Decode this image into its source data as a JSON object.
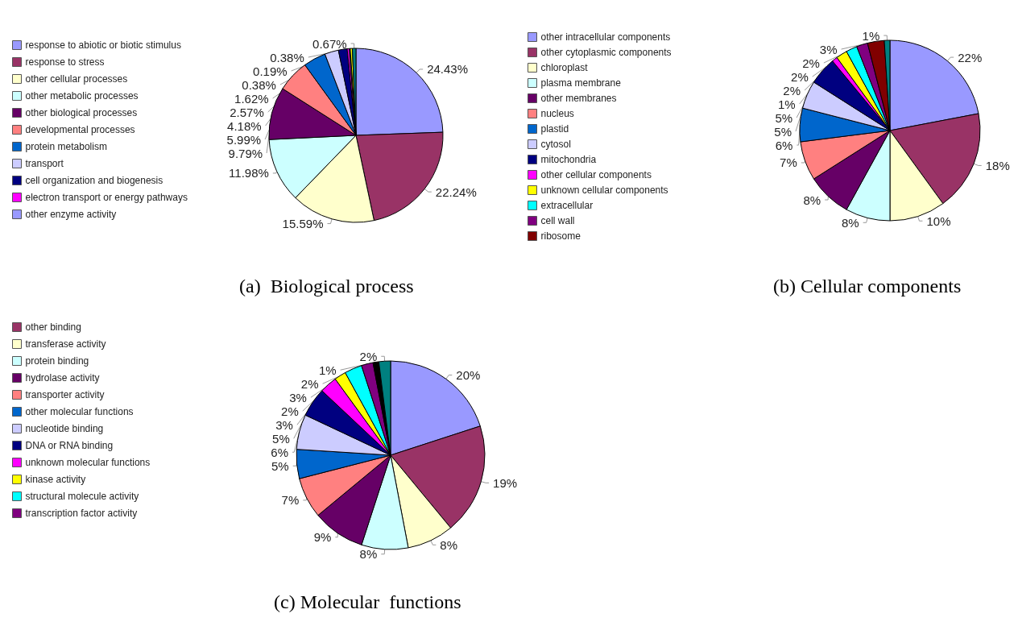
{
  "chart_data": [
    {
      "type": "pie",
      "title": "(a)  Biological process",
      "legend": "left",
      "categories": [
        "response to abiotic or biotic stimulus",
        "response to stress",
        "other cellular processes",
        "other metabolic processes",
        "other biological processes",
        "developmental processes",
        "protein metabolism",
        "transport",
        "cell organization and biogenesis",
        "electron transport or energy pathways",
        "other enzyme activity",
        null,
        null
      ],
      "values": [
        24.43,
        22.24,
        15.59,
        11.98,
        9.79,
        5.99,
        4.18,
        2.57,
        1.62,
        0.38,
        0.19,
        0.38,
        0.67
      ],
      "value_labels": [
        "24.43%",
        "22.24%",
        "15.59%",
        "11.98%",
        "9.79%",
        "5.99%",
        "4.18%",
        "2.57%",
        "1.62%",
        "0.38%",
        "0.19%",
        "0.38%",
        "0.67%"
      ],
      "colors": [
        "#9999ff",
        "#993366",
        "#ffffcc",
        "#ccffff",
        "#660066",
        "#ff8080",
        "#0066cc",
        "#ccccff",
        "#000080",
        "#ff00ff",
        "#9999ff",
        "#ffff00",
        "#008080"
      ]
    },
    {
      "type": "pie",
      "title": "(b) Cellular components",
      "legend": "left",
      "categories": [
        "other intracellular components",
        "other cytoplasmic components",
        "chloroplast",
        "plasma membrane",
        "other membranes",
        "nucleus",
        "plastid",
        "cytosol",
        "mitochondria",
        "other cellular components",
        "unknown cellular components",
        "extracellular",
        "cell wall",
        "ribosome",
        null
      ],
      "values": [
        22,
        18,
        10,
        8,
        8,
        7,
        6,
        5,
        5,
        1,
        2,
        2,
        2,
        3,
        1
      ],
      "value_labels": [
        "22%",
        "18%",
        "10%",
        "8%",
        "8%",
        "7%",
        "6%",
        "5%",
        "5%",
        "1%",
        "2%",
        "2%",
        "2%",
        "3%",
        "1%"
      ],
      "colors": [
        "#9999ff",
        "#993366",
        "#ffffcc",
        "#ccffff",
        "#660066",
        "#ff8080",
        "#0066cc",
        "#ccccff",
        "#000080",
        "#ff00ff",
        "#ffff00",
        "#00ffff",
        "#800080",
        "#800000",
        "#008080"
      ]
    },
    {
      "type": "pie",
      "title": "(c) Molecular  functions",
      "legend": "left",
      "categories": [
        null,
        "other binding",
        "transferase activity",
        "protein binding",
        "hydrolase activity",
        "transporter activity",
        "other molecular functions",
        "nucleotide binding",
        "DNA or RNA binding",
        "unknown molecular functions",
        "kinase activity",
        "structural molecule activity",
        "transcription factor activity",
        null,
        null
      ],
      "values": [
        20,
        19,
        8,
        8,
        9,
        7,
        5,
        6,
        5,
        3,
        2,
        3,
        2,
        1,
        2
      ],
      "value_labels": [
        "20%",
        "19%",
        "8%",
        "8%",
        "9%",
        "7%",
        "5%",
        "6%",
        "5%",
        "3%",
        "2%",
        "3%",
        "2%",
        "1%",
        "2%"
      ],
      "colors": [
        "#9999ff",
        "#993366",
        "#ffffcc",
        "#ccffff",
        "#660066",
        "#ff8080",
        "#0066cc",
        "#ccccff",
        "#000080",
        "#ff00ff",
        "#ffff00",
        "#00ffff",
        "#800080",
        "#000000",
        "#008080"
      ]
    }
  ]
}
